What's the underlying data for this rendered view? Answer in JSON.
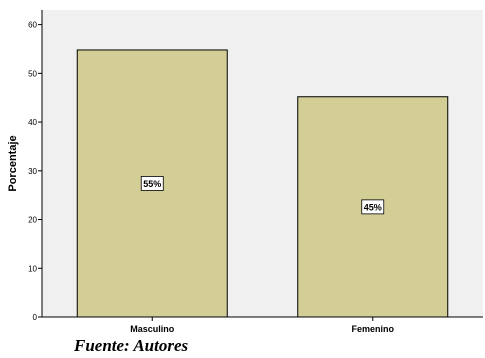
{
  "chart_data": {
    "type": "bar",
    "categories": [
      "Masculino",
      "Femenino"
    ],
    "values": [
      54.8,
      45.2
    ],
    "data_labels": [
      "55%",
      "45%"
    ],
    "ylabel": "Porcentaje",
    "ylim": [
      0,
      63
    ],
    "yticks": [
      0,
      10,
      20,
      30,
      40,
      50,
      60
    ],
    "grid": false,
    "bar_color": "#d3cd96",
    "background_color": "#f0f0f0"
  },
  "source_note": "Fuente: Autores"
}
